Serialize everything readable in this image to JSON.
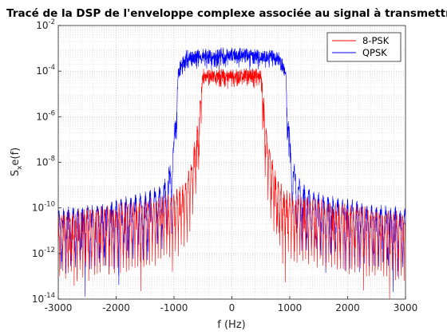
{
  "chart_data": {
    "type": "line",
    "title": "Tracé de la DSP de l'enveloppe complexe associée au signal à transmettre",
    "xlabel": "f (Hz)",
    "ylabel": "S_x e(f)",
    "xlim": [
      -3000,
      3000
    ],
    "ylim_exponents": [
      -14,
      -2
    ],
    "yscale": "log",
    "grid": true,
    "minor_grid": true,
    "legend_position": "top-right",
    "x_ticks": [
      -3000,
      -2000,
      -1000,
      0,
      1000,
      2000,
      3000
    ],
    "y_ticks": [
      -14,
      -12,
      -10,
      -8,
      -6,
      -4,
      -2
    ],
    "series": [
      {
        "name": "8-PSK",
        "color": "#ff0000",
        "envelope_points": [
          [
            -3000,
            4e-11
          ],
          [
            -2500,
            6e-11
          ],
          [
            -2000,
            9e-11
          ],
          [
            -1500,
            1.5e-10
          ],
          [
            -1000,
            3e-10
          ],
          [
            -800,
            1e-09
          ],
          [
            -700,
            8e-09
          ],
          [
            -600,
            3e-07
          ],
          [
            -500,
            8e-05
          ],
          [
            0,
            8e-05
          ],
          [
            500,
            8e-05
          ],
          [
            600,
            3e-07
          ],
          [
            700,
            8e-09
          ],
          [
            800,
            1e-09
          ],
          [
            1000,
            3e-10
          ],
          [
            1500,
            1.5e-10
          ],
          [
            2000,
            9e-11
          ],
          [
            2500,
            6e-11
          ],
          [
            3000,
            4e-11
          ]
        ]
      },
      {
        "name": "QPSK",
        "color": "#0000ff",
        "envelope_points": [
          [
            -3000,
            6e-11
          ],
          [
            -2500,
            9e-11
          ],
          [
            -2000,
            1.5e-10
          ],
          [
            -1500,
            3e-10
          ],
          [
            -1200,
            8e-10
          ],
          [
            -1100,
            3e-09
          ],
          [
            -1000,
            8e-08
          ],
          [
            -950,
            0.0001
          ],
          [
            -800,
            0.0005
          ],
          [
            0,
            0.0007
          ],
          [
            800,
            0.0005
          ],
          [
            950,
            0.0001
          ],
          [
            1000,
            8e-08
          ],
          [
            1100,
            3e-09
          ],
          [
            1200,
            8e-10
          ],
          [
            1500,
            3e-10
          ],
          [
            2000,
            1.5e-10
          ],
          [
            2500,
            9e-11
          ],
          [
            3000,
            6e-11
          ]
        ]
      }
    ]
  }
}
